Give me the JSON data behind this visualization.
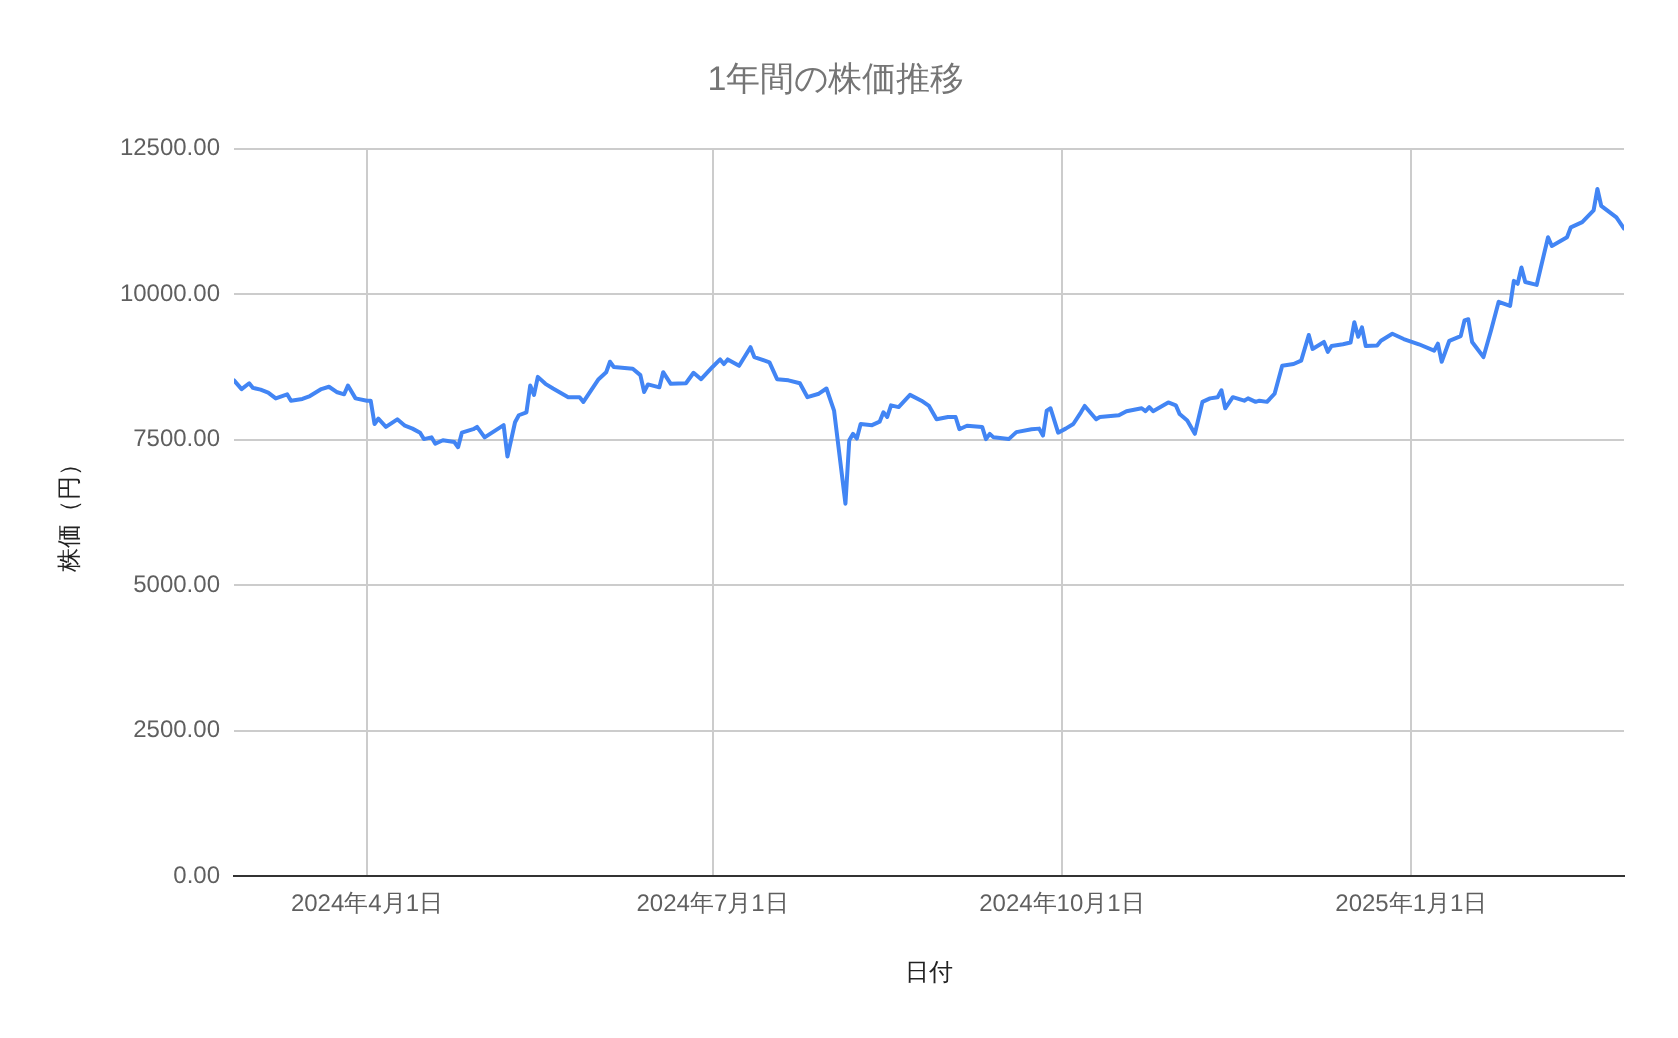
{
  "chart_data": {
    "type": "line",
    "title": "1年間の株価推移",
    "xlabel": "日付",
    "ylabel": "株価（円）",
    "xlim": [
      "2024-02-26",
      "2025-02-26"
    ],
    "xticks": [
      {
        "value": "2024-04-01",
        "label": "2024年4月1日"
      },
      {
        "value": "2024-07-01",
        "label": "2024年7月1日"
      },
      {
        "value": "2024-10-01",
        "label": "2024年10月1日"
      },
      {
        "value": "2025-01-01",
        "label": "2025年1月1日"
      }
    ],
    "ylim": [
      0,
      12500
    ],
    "yticks": [
      {
        "value": 0,
        "label": "0.00"
      },
      {
        "value": 2500,
        "label": "2500.00"
      },
      {
        "value": 5000,
        "label": "5000.00"
      },
      {
        "value": 7500,
        "label": "7500.00"
      },
      {
        "value": 10000,
        "label": "10000.00"
      },
      {
        "value": 12500,
        "label": "12500.00"
      }
    ],
    "grid": true,
    "x": [
      "2024-02-26",
      "2024-02-28",
      "2024-03-01",
      "2024-03-02",
      "2024-03-04",
      "2024-03-06",
      "2024-03-08",
      "2024-03-11",
      "2024-03-12",
      "2024-03-15",
      "2024-03-17",
      "2024-03-20",
      "2024-03-22",
      "2024-03-24",
      "2024-03-26",
      "2024-03-27",
      "2024-03-29",
      "2024-04-01",
      "2024-04-02",
      "2024-04-03",
      "2024-04-04",
      "2024-04-06",
      "2024-04-09",
      "2024-04-11",
      "2024-04-13",
      "2024-04-15",
      "2024-04-16",
      "2024-04-18",
      "2024-04-19",
      "2024-04-21",
      "2024-04-24",
      "2024-04-25",
      "2024-04-26",
      "2024-04-29",
      "2024-04-30",
      "2024-05-02",
      "2024-05-07",
      "2024-05-08",
      "2024-05-10",
      "2024-05-11",
      "2024-05-13",
      "2024-05-14",
      "2024-05-15",
      "2024-05-16",
      "2024-05-18",
      "2024-05-20",
      "2024-05-24",
      "2024-05-27",
      "2024-05-28",
      "2024-06-01",
      "2024-06-03",
      "2024-06-04",
      "2024-06-05",
      "2024-06-10",
      "2024-06-12",
      "2024-06-13",
      "2024-06-14",
      "2024-06-17",
      "2024-06-18",
      "2024-06-20",
      "2024-06-24",
      "2024-06-26",
      "2024-06-28",
      "2024-07-01",
      "2024-07-03",
      "2024-07-04",
      "2024-07-05",
      "2024-07-08",
      "2024-07-11",
      "2024-07-12",
      "2024-07-16",
      "2024-07-18",
      "2024-07-21",
      "2024-07-24",
      "2024-07-26",
      "2024-07-29",
      "2024-07-31",
      "2024-08-02",
      "2024-08-05",
      "2024-08-06",
      "2024-08-07",
      "2024-08-08",
      "2024-08-09",
      "2024-08-12",
      "2024-08-14",
      "2024-08-15",
      "2024-08-16",
      "2024-08-17",
      "2024-08-19",
      "2024-08-22",
      "2024-08-25",
      "2024-08-27",
      "2024-08-29",
      "2024-09-01",
      "2024-09-03",
      "2024-09-04",
      "2024-09-06",
      "2024-09-10",
      "2024-09-11",
      "2024-09-12",
      "2024-09-13",
      "2024-09-17",
      "2024-09-19",
      "2024-09-23",
      "2024-09-25",
      "2024-09-26",
      "2024-09-27",
      "2024-09-28",
      "2024-09-30",
      "2024-10-02",
      "2024-10-04",
      "2024-10-06",
      "2024-10-07",
      "2024-10-10",
      "2024-10-11",
      "2024-10-16",
      "2024-10-18",
      "2024-10-22",
      "2024-10-23",
      "2024-10-24",
      "2024-10-25",
      "2024-10-29",
      "2024-10-31",
      "2024-11-01",
      "2024-11-03",
      "2024-11-05",
      "2024-11-07",
      "2024-11-09",
      "2024-11-11",
      "2024-11-12",
      "2024-11-13",
      "2024-11-15",
      "2024-11-18",
      "2024-11-19",
      "2024-11-21",
      "2024-11-22",
      "2024-11-24",
      "2024-11-26",
      "2024-11-28",
      "2024-12-01",
      "2024-12-03",
      "2024-12-05",
      "2024-12-06",
      "2024-12-09",
      "2024-12-10",
      "2024-12-11",
      "2024-12-14",
      "2024-12-16",
      "2024-12-17",
      "2024-12-18",
      "2024-12-19",
      "2024-12-20",
      "2024-12-23",
      "2024-12-24",
      "2024-12-27",
      "2024-12-30",
      "2025-01-03",
      "2025-01-07",
      "2025-01-08",
      "2025-01-09",
      "2025-01-11",
      "2025-01-14",
      "2025-01-15",
      "2025-01-16",
      "2025-01-17",
      "2025-01-20",
      "2025-01-22",
      "2025-01-24",
      "2025-01-27",
      "2025-01-28",
      "2025-01-29",
      "2025-01-30",
      "2025-01-31",
      "2025-02-03",
      "2025-02-06",
      "2025-02-07",
      "2025-02-11",
      "2025-02-12",
      "2025-02-15",
      "2025-02-18",
      "2025-02-19",
      "2025-02-20",
      "2025-02-24",
      "2025-02-26"
    ],
    "series": [
      {
        "color": "#4285f4",
        "values": [
          8520,
          8370,
          8470,
          8390,
          8360,
          8310,
          8210,
          8280,
          8170,
          8200,
          8250,
          8370,
          8410,
          8320,
          8280,
          8430,
          8210,
          8170,
          8170,
          7770,
          7860,
          7720,
          7850,
          7740,
          7690,
          7620,
          7510,
          7540,
          7430,
          7490,
          7460,
          7370,
          7620,
          7680,
          7720,
          7540,
          7750,
          7210,
          7800,
          7920,
          7970,
          8430,
          8270,
          8580,
          8460,
          8380,
          8230,
          8230,
          8150,
          8540,
          8660,
          8840,
          8750,
          8720,
          8610,
          8320,
          8450,
          8400,
          8660,
          8460,
          8470,
          8650,
          8540,
          8750,
          8880,
          8800,
          8880,
          8770,
          9090,
          8920,
          8830,
          8540,
          8520,
          8470,
          8230,
          8290,
          8380,
          8000,
          6400,
          7490,
          7600,
          7520,
          7770,
          7750,
          7810,
          7970,
          7890,
          8090,
          8060,
          8270,
          8170,
          8080,
          7850,
          7890,
          7890,
          7680,
          7740,
          7720,
          7510,
          7600,
          7540,
          7510,
          7630,
          7680,
          7690,
          7570,
          8000,
          8040,
          7620,
          7690,
          7770,
          7970,
          8080,
          7850,
          7890,
          7920,
          7990,
          8040,
          7990,
          8060,
          7990,
          8140,
          8090,
          7940,
          7830,
          7600,
          8150,
          8210,
          8230,
          8350,
          8040,
          8230,
          8170,
          8210,
          8150,
          8170,
          8150,
          8290,
          8770,
          8800,
          8860,
          9300,
          9060,
          9180,
          9010,
          9110,
          9140,
          9170,
          9520,
          9270,
          9430,
          9110,
          9120,
          9200,
          9320,
          9230,
          9140,
          9030,
          9150,
          8840,
          9200,
          9280,
          9550,
          9570,
          9180,
          8920,
          9380,
          9870,
          9800,
          10230,
          10180,
          10460,
          10210,
          10160,
          10980,
          10830,
          10980,
          11150,
          11240,
          11440,
          11810,
          11520,
          11320,
          11130
        ]
      }
    ]
  }
}
